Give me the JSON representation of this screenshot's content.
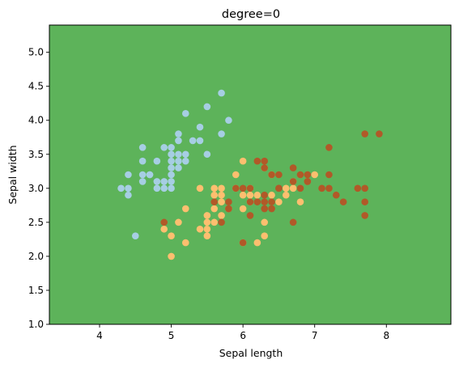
{
  "chart_data": {
    "type": "scatter",
    "title": "degree=0",
    "xlabel": "Sepal length",
    "ylabel": "Sepal width",
    "xlim": [
      3.3,
      8.9
    ],
    "ylim": [
      1.0,
      5.4
    ],
    "xticks": [
      "4",
      "5",
      "6",
      "7",
      "8"
    ],
    "yticks": [
      "1.0",
      "1.5",
      "2.0",
      "2.5",
      "3.0",
      "3.5",
      "4.0",
      "4.5",
      "5.0"
    ],
    "background_region_color": "#5db35a",
    "grid": false,
    "legend": "none",
    "series": [
      {
        "color": "#a6cee3",
        "points": [
          [
            5.1,
            3.5
          ],
          [
            4.9,
            3.0
          ],
          [
            4.7,
            3.2
          ],
          [
            4.6,
            3.1
          ],
          [
            5.0,
            3.6
          ],
          [
            5.4,
            3.9
          ],
          [
            4.6,
            3.4
          ],
          [
            5.0,
            3.4
          ],
          [
            4.4,
            2.9
          ],
          [
            4.9,
            3.1
          ],
          [
            5.4,
            3.7
          ],
          [
            4.8,
            3.4
          ],
          [
            4.8,
            3.0
          ],
          [
            4.3,
            3.0
          ],
          [
            5.8,
            4.0
          ],
          [
            5.7,
            4.4
          ],
          [
            5.1,
            3.8
          ],
          [
            5.7,
            3.8
          ],
          [
            5.1,
            3.7
          ],
          [
            4.6,
            3.6
          ],
          [
            5.0,
            3.0
          ],
          [
            5.2,
            3.5
          ],
          [
            5.2,
            3.4
          ],
          [
            5.5,
            4.2
          ],
          [
            5.2,
            4.1
          ],
          [
            4.9,
            3.6
          ],
          [
            4.5,
            2.3
          ],
          [
            4.4,
            3.2
          ],
          [
            5.3,
            3.7
          ],
          [
            5.0,
            3.3
          ],
          [
            5.5,
            3.5
          ],
          [
            4.8,
            3.1
          ],
          [
            5.0,
            3.2
          ],
          [
            4.7,
            3.2
          ],
          [
            4.4,
            3.0
          ],
          [
            5.1,
            3.3
          ],
          [
            5.0,
            3.5
          ],
          [
            5.0,
            3.1
          ],
          [
            4.6,
            3.2
          ],
          [
            5.1,
            3.4
          ]
        ]
      },
      {
        "color": "#fdbf6f",
        "points": [
          [
            7.0,
            3.2
          ],
          [
            6.4,
            3.2
          ],
          [
            6.9,
            3.1
          ],
          [
            5.5,
            2.3
          ],
          [
            6.5,
            2.8
          ],
          [
            5.7,
            2.8
          ],
          [
            6.3,
            3.3
          ],
          [
            4.9,
            2.4
          ],
          [
            6.6,
            2.9
          ],
          [
            5.2,
            2.7
          ],
          [
            5.0,
            2.0
          ],
          [
            5.9,
            3.0
          ],
          [
            6.0,
            2.2
          ],
          [
            6.1,
            2.9
          ],
          [
            5.6,
            2.9
          ],
          [
            6.7,
            3.1
          ],
          [
            5.6,
            3.0
          ],
          [
            5.8,
            2.7
          ],
          [
            6.2,
            2.2
          ],
          [
            5.6,
            2.5
          ],
          [
            5.9,
            3.2
          ],
          [
            6.1,
            2.8
          ],
          [
            6.3,
            2.5
          ],
          [
            6.4,
            2.9
          ],
          [
            6.6,
            3.0
          ],
          [
            6.8,
            2.8
          ],
          [
            6.0,
            2.9
          ],
          [
            5.7,
            2.6
          ],
          [
            5.5,
            2.4
          ],
          [
            5.5,
            2.5
          ],
          [
            5.8,
            2.7
          ],
          [
            5.4,
            3.0
          ],
          [
            6.0,
            3.4
          ],
          [
            6.3,
            2.3
          ],
          [
            5.5,
            2.6
          ],
          [
            6.1,
            3.0
          ],
          [
            5.0,
            2.3
          ],
          [
            5.6,
            2.7
          ],
          [
            5.7,
            3.0
          ],
          [
            5.7,
            2.9
          ],
          [
            6.2,
            2.9
          ],
          [
            5.1,
            2.5
          ],
          [
            6.0,
            2.7
          ],
          [
            5.4,
            2.4
          ],
          [
            6.7,
            3.0
          ],
          [
            5.2,
            2.2
          ]
        ]
      },
      {
        "color": "#b15928",
        "points": [
          [
            6.3,
            3.3
          ],
          [
            5.8,
            2.7
          ],
          [
            7.1,
            3.0
          ],
          [
            6.3,
            2.9
          ],
          [
            6.5,
            3.0
          ],
          [
            7.6,
            3.0
          ],
          [
            4.9,
            2.5
          ],
          [
            7.3,
            2.9
          ],
          [
            6.7,
            2.5
          ],
          [
            7.2,
            3.6
          ],
          [
            6.5,
            3.2
          ],
          [
            6.4,
            2.7
          ],
          [
            6.8,
            3.0
          ],
          [
            5.7,
            2.5
          ],
          [
            5.8,
            2.8
          ],
          [
            6.4,
            3.2
          ],
          [
            7.7,
            3.8
          ],
          [
            7.7,
            2.6
          ],
          [
            6.0,
            2.2
          ],
          [
            6.9,
            3.2
          ],
          [
            5.6,
            2.8
          ],
          [
            7.7,
            2.8
          ],
          [
            6.3,
            2.7
          ],
          [
            6.7,
            3.3
          ],
          [
            7.2,
            3.2
          ],
          [
            6.2,
            2.8
          ],
          [
            6.1,
            3.0
          ],
          [
            7.2,
            3.0
          ],
          [
            7.4,
            2.8
          ],
          [
            7.9,
            3.8
          ],
          [
            6.1,
            2.6
          ],
          [
            7.7,
            3.0
          ],
          [
            6.3,
            3.4
          ],
          [
            6.9,
            3.1
          ],
          [
            6.7,
            3.1
          ],
          [
            5.8,
            2.7
          ],
          [
            6.8,
            3.2
          ],
          [
            6.5,
            3.0
          ],
          [
            6.2,
            3.4
          ],
          [
            5.9,
            3.0
          ],
          [
            6.0,
            3.0
          ],
          [
            6.3,
            2.8
          ],
          [
            6.1,
            2.8
          ],
          [
            6.4,
            2.8
          ],
          [
            6.9,
            3.1
          ]
        ]
      }
    ]
  }
}
